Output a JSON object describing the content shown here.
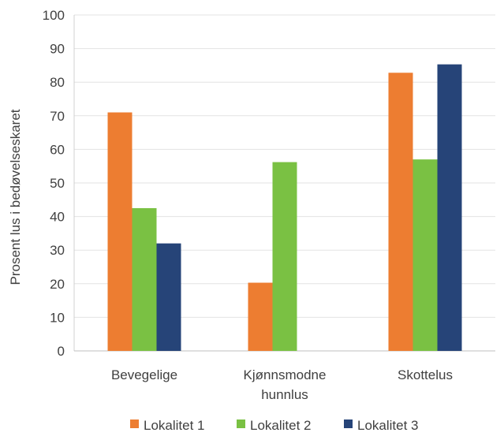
{
  "chart_data": {
    "type": "bar",
    "categories": [
      [
        "Bevegelige"
      ],
      [
        "Kjønnsmodne",
        "hunnlus"
      ],
      [
        "Skottelus"
      ]
    ],
    "series": [
      {
        "name": "Lokalitet 1",
        "color": "#ED7D31",
        "values": [
          71,
          20.3,
          82.8
        ]
      },
      {
        "name": "Lokalitet 2",
        "color": "#7AC143",
        "values": [
          42.5,
          56.2,
          57
        ]
      },
      {
        "name": "Lokalitet 3",
        "color": "#264478",
        "values": [
          32,
          null,
          85.3
        ]
      }
    ],
    "ylabel": "Prosent lus i bedøvelseskaret",
    "xlabel": "",
    "ylim": [
      0,
      100
    ],
    "yticks": [
      0,
      10,
      20,
      30,
      40,
      50,
      60,
      70,
      80,
      90,
      100
    ],
    "grid": true,
    "legend": "bottom"
  }
}
